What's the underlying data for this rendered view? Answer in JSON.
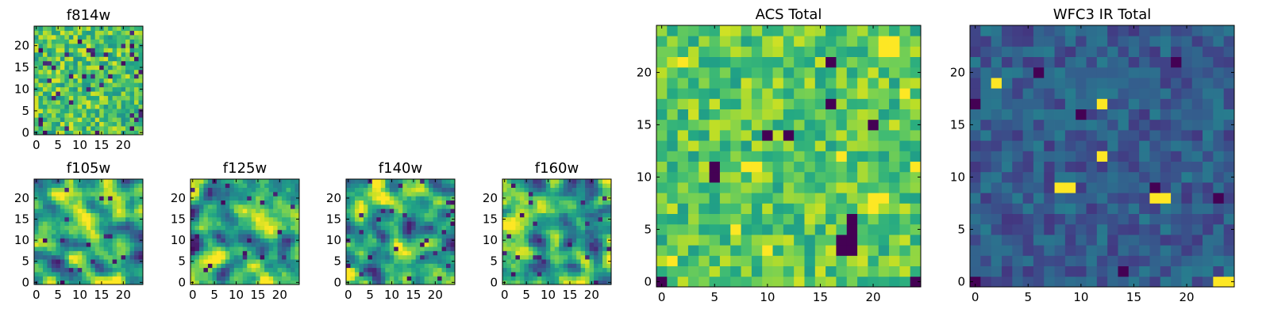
{
  "chart_data": [
    {
      "type": "heatmap",
      "title": "f814w",
      "grid_size": [
        25,
        25
      ],
      "xlim": [
        0,
        24
      ],
      "ylim": [
        0,
        24
      ],
      "xticks": [
        0,
        5,
        10,
        15,
        20
      ],
      "yticks": [
        0,
        5,
        10,
        15,
        20
      ],
      "colormap": "viridis",
      "seed": 814,
      "mode": "noise",
      "anomaly_p": 0.05
    },
    {
      "type": "heatmap",
      "title": "f105w",
      "grid_size": [
        25,
        25
      ],
      "xlim": [
        0,
        24
      ],
      "ylim": [
        0,
        24
      ],
      "xticks": [
        0,
        5,
        10,
        15,
        20
      ],
      "yticks": [
        0,
        5,
        10,
        15,
        20
      ],
      "colormap": "viridis",
      "seed": 105,
      "mode": "smooth",
      "anomaly_p": 0.02
    },
    {
      "type": "heatmap",
      "title": "f125w",
      "grid_size": [
        25,
        25
      ],
      "xlim": [
        0,
        24
      ],
      "ylim": [
        0,
        24
      ],
      "xticks": [
        0,
        5,
        10,
        15,
        20
      ],
      "yticks": [
        0,
        5,
        10,
        15,
        20
      ],
      "colormap": "viridis",
      "seed": 125,
      "mode": "smooth",
      "anomaly_p": 0.03
    },
    {
      "type": "heatmap",
      "title": "f140w",
      "grid_size": [
        25,
        25
      ],
      "xlim": [
        0,
        24
      ],
      "ylim": [
        0,
        24
      ],
      "xticks": [
        0,
        5,
        10,
        15,
        20
      ],
      "yticks": [
        0,
        5,
        10,
        15,
        20
      ],
      "colormap": "viridis",
      "seed": 140,
      "mode": "smooth",
      "anomaly_p": 0.03
    },
    {
      "type": "heatmap",
      "title": "f160w",
      "grid_size": [
        25,
        25
      ],
      "xlim": [
        0,
        24
      ],
      "ylim": [
        0,
        24
      ],
      "xticks": [
        0,
        5,
        10,
        15,
        20
      ],
      "yticks": [
        0,
        5,
        10,
        15,
        20
      ],
      "colormap": "viridis",
      "seed": 160,
      "mode": "smooth",
      "anomaly_p": 0.03
    },
    {
      "type": "heatmap",
      "title": "ACS Total",
      "grid_size": [
        25,
        25
      ],
      "xlim": [
        0,
        24
      ],
      "ylim": [
        0,
        24
      ],
      "xticks": [
        0,
        5,
        10,
        15,
        20
      ],
      "yticks": [
        0,
        5,
        10,
        15,
        20
      ],
      "colormap": "viridis",
      "seed": 4242,
      "mode": "acs",
      "dark_cells": [
        [
          5,
          10
        ],
        [
          5,
          11
        ],
        [
          17,
          3
        ],
        [
          17,
          4
        ],
        [
          18,
          3
        ],
        [
          18,
          4
        ],
        [
          18,
          5
        ],
        [
          18,
          6
        ],
        [
          16,
          17
        ],
        [
          10,
          14
        ],
        [
          12,
          14
        ],
        [
          16,
          21
        ],
        [
          20,
          15
        ],
        [
          0,
          0
        ],
        [
          24,
          0
        ]
      ],
      "bright_cells": [
        [
          21,
          22
        ],
        [
          21,
          23
        ],
        [
          22,
          22
        ],
        [
          22,
          23
        ],
        [
          20,
          7
        ],
        [
          20,
          8
        ],
        [
          21,
          8
        ],
        [
          17,
          12
        ],
        [
          7,
          5
        ],
        [
          1,
          2
        ],
        [
          2,
          21
        ],
        [
          8,
          11
        ],
        [
          9,
          11
        ],
        [
          10,
          3
        ],
        [
          24,
          11
        ],
        [
          23,
          18
        ]
      ]
    },
    {
      "type": "heatmap",
      "title": "WFC3 IR Total",
      "grid_size": [
        25,
        25
      ],
      "xlim": [
        0,
        24
      ],
      "ylim": [
        0,
        24
      ],
      "xticks": [
        0,
        5,
        10,
        15,
        20
      ],
      "yticks": [
        0,
        5,
        10,
        15,
        20
      ],
      "colormap": "viridis",
      "seed": 777,
      "mode": "wfc3",
      "bright_cells": [
        [
          8,
          9
        ],
        [
          9,
          9
        ],
        [
          17,
          8
        ],
        [
          18,
          8
        ],
        [
          2,
          19
        ],
        [
          12,
          12
        ],
        [
          12,
          17
        ],
        [
          23,
          0
        ],
        [
          24,
          0
        ]
      ],
      "dark_cells": [
        [
          0,
          0
        ],
        [
          6,
          20
        ],
        [
          19,
          21
        ],
        [
          10,
          16
        ],
        [
          17,
          9
        ],
        [
          23,
          8
        ],
        [
          14,
          1
        ],
        [
          0,
          17
        ]
      ]
    }
  ]
}
